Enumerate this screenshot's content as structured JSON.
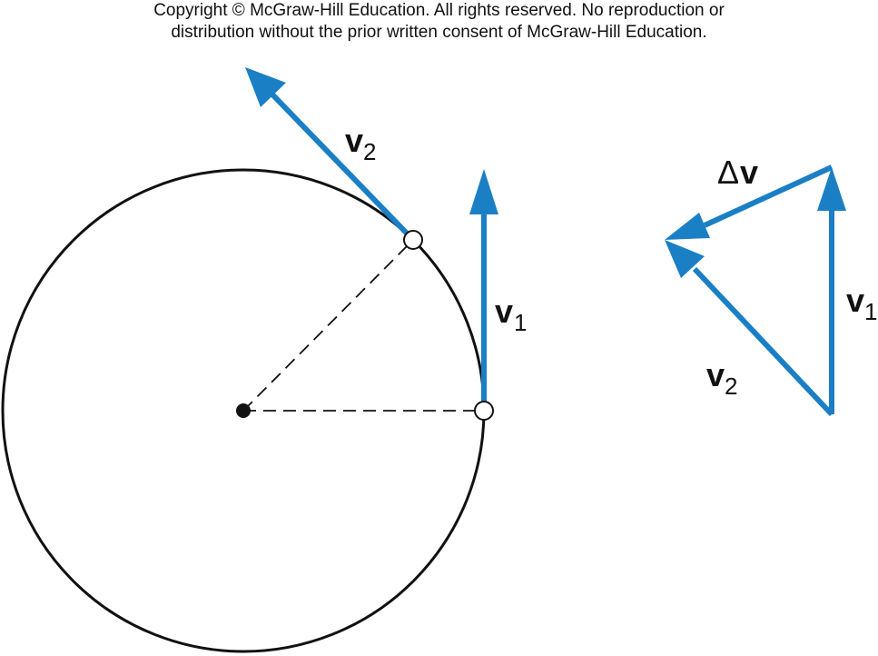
{
  "copyright": {
    "line1": "Copyright © McGraw-Hill Education.  All rights reserved. No reproduction or",
    "line2": "distribution without the prior written consent of McGraw-Hill Education."
  },
  "labels": {
    "v2_main": "v",
    "v2_main_sub": "2",
    "v1_main": "v",
    "v1_main_sub": "1",
    "dv_delta": "Δ",
    "dv": "v",
    "v1_tri": "v",
    "v1_tri_sub": "1",
    "v2_tri": "v",
    "v2_tri_sub": "2"
  },
  "colors": {
    "arrow": "#1a7fc4",
    "circle": "#111111",
    "dash": "#111111"
  }
}
